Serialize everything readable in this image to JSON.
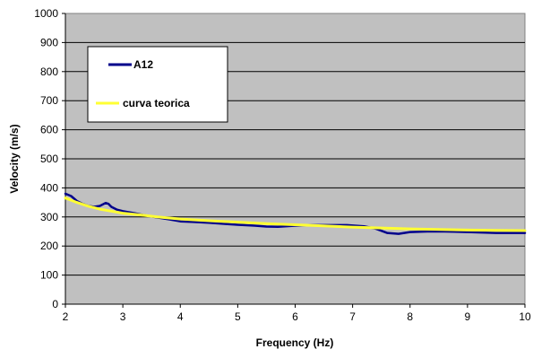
{
  "chart_data": {
    "type": "line",
    "title": "",
    "xlabel": "Frequency (Hz)",
    "ylabel": "Velocity (m/s)",
    "xlim": [
      2,
      10
    ],
    "ylim": [
      0,
      1000
    ],
    "x_ticks": [
      2,
      3,
      4,
      5,
      6,
      7,
      8,
      9,
      10
    ],
    "y_ticks": [
      0,
      100,
      200,
      300,
      400,
      500,
      600,
      700,
      800,
      900,
      1000
    ],
    "grid": "horizontal",
    "plot_background": "#c0c0c0",
    "legend_placement": "top-left",
    "series": [
      {
        "name": "A12",
        "color": "#00008b",
        "points": [
          [
            2.0,
            380
          ],
          [
            2.1,
            372
          ],
          [
            2.2,
            355
          ],
          [
            2.3,
            345
          ],
          [
            2.4,
            338
          ],
          [
            2.5,
            335
          ],
          [
            2.6,
            338
          ],
          [
            2.7,
            348
          ],
          [
            2.75,
            345
          ],
          [
            2.8,
            335
          ],
          [
            2.9,
            325
          ],
          [
            3.0,
            320
          ],
          [
            3.2,
            313
          ],
          [
            3.4,
            305
          ],
          [
            3.6,
            298
          ],
          [
            3.8,
            292
          ],
          [
            4.0,
            285
          ],
          [
            4.2,
            283
          ],
          [
            4.5,
            280
          ],
          [
            4.8,
            276
          ],
          [
            5.0,
            273
          ],
          [
            5.3,
            270
          ],
          [
            5.5,
            267
          ],
          [
            5.7,
            266
          ],
          [
            6.0,
            270
          ],
          [
            6.3,
            272
          ],
          [
            6.6,
            272
          ],
          [
            6.9,
            272
          ],
          [
            7.2,
            268
          ],
          [
            7.4,
            260
          ],
          [
            7.6,
            245
          ],
          [
            7.8,
            242
          ],
          [
            8.0,
            248
          ],
          [
            8.3,
            250
          ],
          [
            8.6,
            250
          ],
          [
            9.0,
            248
          ],
          [
            9.5,
            245
          ],
          [
            10.0,
            245
          ]
        ]
      },
      {
        "name": "curva teorica",
        "color": "#ffff33",
        "points": [
          [
            2.0,
            365
          ],
          [
            2.2,
            350
          ],
          [
            2.4,
            337
          ],
          [
            2.6,
            327
          ],
          [
            2.8,
            320
          ],
          [
            3.0,
            313
          ],
          [
            3.3,
            307
          ],
          [
            3.6,
            300
          ],
          [
            4.0,
            293
          ],
          [
            4.5,
            287
          ],
          [
            5.0,
            282
          ],
          [
            5.5,
            277
          ],
          [
            6.0,
            273
          ],
          [
            6.5,
            269
          ],
          [
            7.0,
            265
          ],
          [
            7.5,
            262
          ],
          [
            8.0,
            259
          ],
          [
            8.5,
            257
          ],
          [
            9.0,
            255
          ],
          [
            9.5,
            254
          ],
          [
            10.0,
            253
          ]
        ]
      }
    ]
  }
}
